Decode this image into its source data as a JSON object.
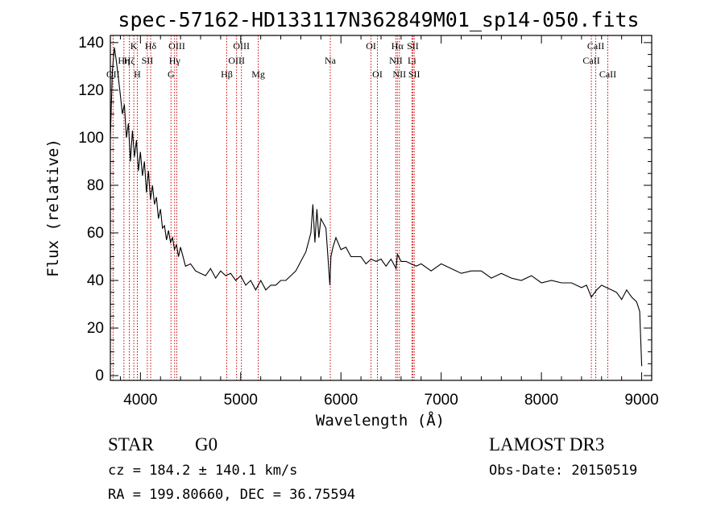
{
  "chart_data": {
    "type": "line",
    "title": "spec-57162-HD133117N362849M01_sp14-050.fits",
    "xlabel": "Wavelength (Å)",
    "ylabel": "Flux (relative)",
    "xlim": [
      3700,
      9100
    ],
    "ylim": [
      -2,
      143
    ],
    "xticks": [
      4000,
      5000,
      6000,
      7000,
      8000,
      9000
    ],
    "yticks": [
      0,
      20,
      40,
      60,
      80,
      100,
      120,
      140
    ],
    "grid": false,
    "series": [
      {
        "x": [
          3700,
          3720,
          3740,
          3760,
          3780,
          3800,
          3820,
          3840,
          3860,
          3880,
          3900,
          3920,
          3940,
          3960,
          3980,
          4000,
          4020,
          4040,
          4060,
          4080,
          4100,
          4120,
          4140,
          4160,
          4180,
          4200,
          4220,
          4240,
          4260,
          4280,
          4300,
          4320,
          4340,
          4360,
          4380,
          4400,
          4450,
          4500,
          4550,
          4600,
          4650,
          4700,
          4750,
          4800,
          4850,
          4900,
          4950,
          5000,
          5050,
          5100,
          5150,
          5200,
          5250,
          5300,
          5350,
          5400,
          5450,
          5500,
          5550,
          5600,
          5650,
          5700,
          5720,
          5740,
          5760,
          5780,
          5800,
          5850,
          5880,
          5890,
          5900,
          5920,
          5950,
          6000,
          6050,
          6100,
          6150,
          6200,
          6250,
          6300,
          6350,
          6400,
          6450,
          6500,
          6550,
          6563,
          6600,
          6650,
          6700,
          6750,
          6800,
          6900,
          7000,
          7100,
          7200,
          7300,
          7400,
          7500,
          7600,
          7700,
          7800,
          7900,
          8000,
          8100,
          8200,
          8300,
          8400,
          8450,
          8498,
          8550,
          8600,
          8650,
          8700,
          8750,
          8800,
          8850,
          8900,
          8950,
          8980,
          9000
        ],
        "y": [
          100,
          128,
          138,
          132,
          125,
          118,
          110,
          114,
          100,
          106,
          90,
          103,
          92,
          99,
          86,
          94,
          84,
          90,
          77,
          86,
          74,
          80,
          72,
          75,
          66,
          70,
          62,
          63,
          57,
          61,
          56,
          58,
          53,
          55,
          50,
          54,
          46,
          47,
          44,
          43,
          42,
          45,
          41,
          44,
          42,
          43,
          40,
          42,
          38,
          40,
          36,
          40,
          36,
          38,
          38,
          40,
          40,
          42,
          44,
          48,
          52,
          60,
          72,
          56,
          70,
          58,
          66,
          62,
          44,
          38,
          50,
          54,
          58,
          53,
          54,
          50,
          50,
          50,
          47,
          49,
          48,
          49,
          46,
          49,
          45,
          51,
          48,
          48,
          47,
          46,
          47,
          44,
          47,
          45,
          43,
          44,
          44,
          41,
          43,
          41,
          40,
          42,
          39,
          40,
          39,
          39,
          37,
          38,
          33,
          36,
          38,
          37,
          36,
          35,
          32,
          36,
          33,
          31,
          27,
          4
        ]
      }
    ],
    "line_markers": [
      {
        "label": "OII",
        "wl": 3727,
        "row": 3
      },
      {
        "label": "Hη",
        "wl": 3835,
        "row": 2
      },
      {
        "label": "Hζ",
        "wl": 3889,
        "row": 2
      },
      {
        "label": "K",
        "wl": 3934,
        "row": 1
      },
      {
        "label": "H",
        "wl": 3969,
        "row": 3
      },
      {
        "label": "SII",
        "wl": 4069,
        "row": 2
      },
      {
        "label": "Hδ",
        "wl": 4102,
        "row": 1
      },
      {
        "label": "G",
        "wl": 4305,
        "row": 3
      },
      {
        "label": "Hγ",
        "wl": 4341,
        "row": 2
      },
      {
        "label": "OIII",
        "wl": 4363,
        "row": 1
      },
      {
        "label": "Hβ",
        "wl": 4861,
        "row": 3
      },
      {
        "label": "OIII",
        "wl": 4959,
        "row": 2
      },
      {
        "label": "OIII",
        "wl": 5007,
        "row": 1
      },
      {
        "label": "Mg",
        "wl": 5175,
        "row": 3
      },
      {
        "label": "Na",
        "wl": 5894,
        "row": 2
      },
      {
        "label": "OI",
        "wl": 6300,
        "row": 1
      },
      {
        "label": "OI",
        "wl": 6364,
        "row": 3
      },
      {
        "label": "NII",
        "wl": 6548,
        "row": 2
      },
      {
        "label": "Hα",
        "wl": 6563,
        "row": 1
      },
      {
        "label": "NII",
        "wl": 6583,
        "row": 3
      },
      {
        "label": "Li",
        "wl": 6708,
        "row": 2
      },
      {
        "label": "SII",
        "wl": 6717,
        "row": 1
      },
      {
        "label": "SII",
        "wl": 6731,
        "row": 3
      },
      {
        "label": "CaII",
        "wl": 8498,
        "row": 2
      },
      {
        "label": "CaII",
        "wl": 8542,
        "row": 1
      },
      {
        "label": "CaII",
        "wl": 8662,
        "row": 3
      }
    ]
  },
  "info": {
    "class_label": "STAR",
    "subclass": "G0",
    "survey": "LAMOST DR3",
    "cz": "cz = 184.2 ± 140.1 km/s",
    "obs_date": "Obs-Date: 20150519",
    "coords": "RA = 199.80660, DEC =  36.75594"
  },
  "colors": {
    "spectrum": "#000000",
    "marker": "#cc0000",
    "axis": "#000000"
  }
}
